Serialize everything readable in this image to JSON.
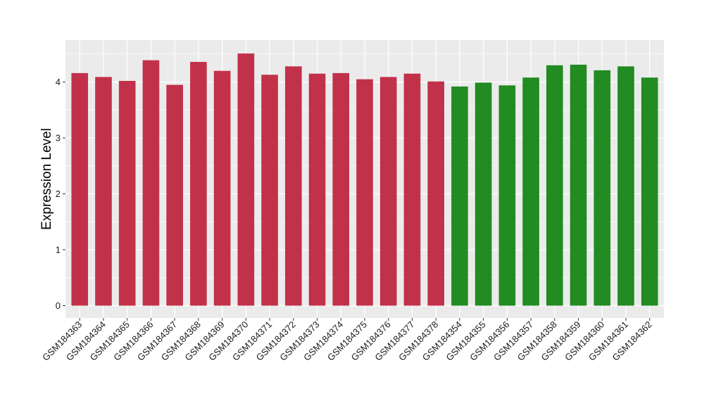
{
  "chart_data": {
    "type": "bar",
    "ylabel": "Expression Level",
    "xlabel": "",
    "ylim": [
      -0.22,
      4.75
    ],
    "yticks": [
      0,
      1,
      2,
      3,
      4
    ],
    "grid": true,
    "panel_background": "#ebebeb",
    "grid_color": "#ffffff",
    "categories": [
      "GSM184363",
      "GSM184364",
      "GSM184365",
      "GSM184366",
      "GSM184367",
      "GSM184368",
      "GSM184369",
      "GSM184370",
      "GSM184371",
      "GSM184372",
      "GSM184373",
      "GSM184374",
      "GSM184375",
      "GSM184376",
      "GSM184377",
      "GSM184378",
      "GSM184354",
      "GSM184355",
      "GSM184356",
      "GSM184357",
      "GSM184358",
      "GSM184359",
      "GSM184360",
      "GSM184361",
      "GSM184362"
    ],
    "values": [
      4.16,
      4.09,
      4.02,
      4.39,
      3.95,
      4.36,
      4.2,
      4.51,
      4.13,
      4.28,
      4.15,
      4.16,
      4.05,
      4.09,
      4.15,
      4.01,
      3.92,
      3.99,
      3.94,
      4.08,
      4.3,
      4.31,
      4.21,
      4.28,
      4.08
    ],
    "colors": [
      "#c2314a",
      "#c2314a",
      "#c2314a",
      "#c2314a",
      "#c2314a",
      "#c2314a",
      "#c2314a",
      "#c2314a",
      "#c2314a",
      "#c2314a",
      "#c2314a",
      "#c2314a",
      "#c2314a",
      "#c2314a",
      "#c2314a",
      "#c2314a",
      "#228b22",
      "#228b22",
      "#228b22",
      "#228b22",
      "#228b22",
      "#228b22",
      "#228b22",
      "#228b22",
      "#228b22"
    ]
  }
}
